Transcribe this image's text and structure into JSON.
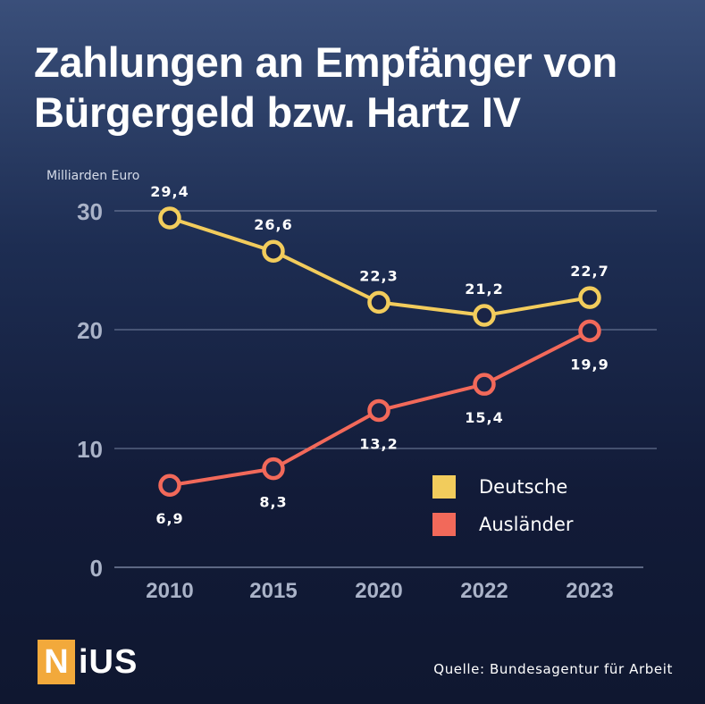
{
  "title_line1": "Zahlungen an Empfänger von",
  "title_line2": "Bürgergeld bzw. Hartz IV",
  "source": "Quelle: Bundesagentur für Arbeit",
  "logo": {
    "first": "N",
    "rest": "iUS"
  },
  "colors": {
    "deutsche": "#f2cc5c",
    "auslaender": "#f2695a",
    "grid": "#8f9bb8",
    "tick": "#aab3c8",
    "logo": "#f2a93b"
  },
  "chart_data": {
    "type": "line",
    "ylabel": "Milliarden Euro",
    "categories": [
      "2010",
      "2015",
      "2020",
      "2022",
      "2023"
    ],
    "ylim": [
      0,
      30
    ],
    "yticks": [
      "0",
      "10",
      "20",
      "30"
    ],
    "grid": true,
    "legend_position": "right",
    "series": [
      {
        "name": "Deutsche",
        "values": [
          29.4,
          26.6,
          22.3,
          21.2,
          22.7
        ],
        "labels": [
          "29,4",
          "26,6",
          "22,3",
          "21,2",
          "22,7"
        ],
        "label_position": "above"
      },
      {
        "name": "Ausländer",
        "values": [
          6.9,
          8.3,
          13.2,
          15.4,
          19.9
        ],
        "labels": [
          "6,9",
          "8,3",
          "13,2",
          "15,4",
          "19,9"
        ],
        "label_position": "below"
      }
    ]
  }
}
